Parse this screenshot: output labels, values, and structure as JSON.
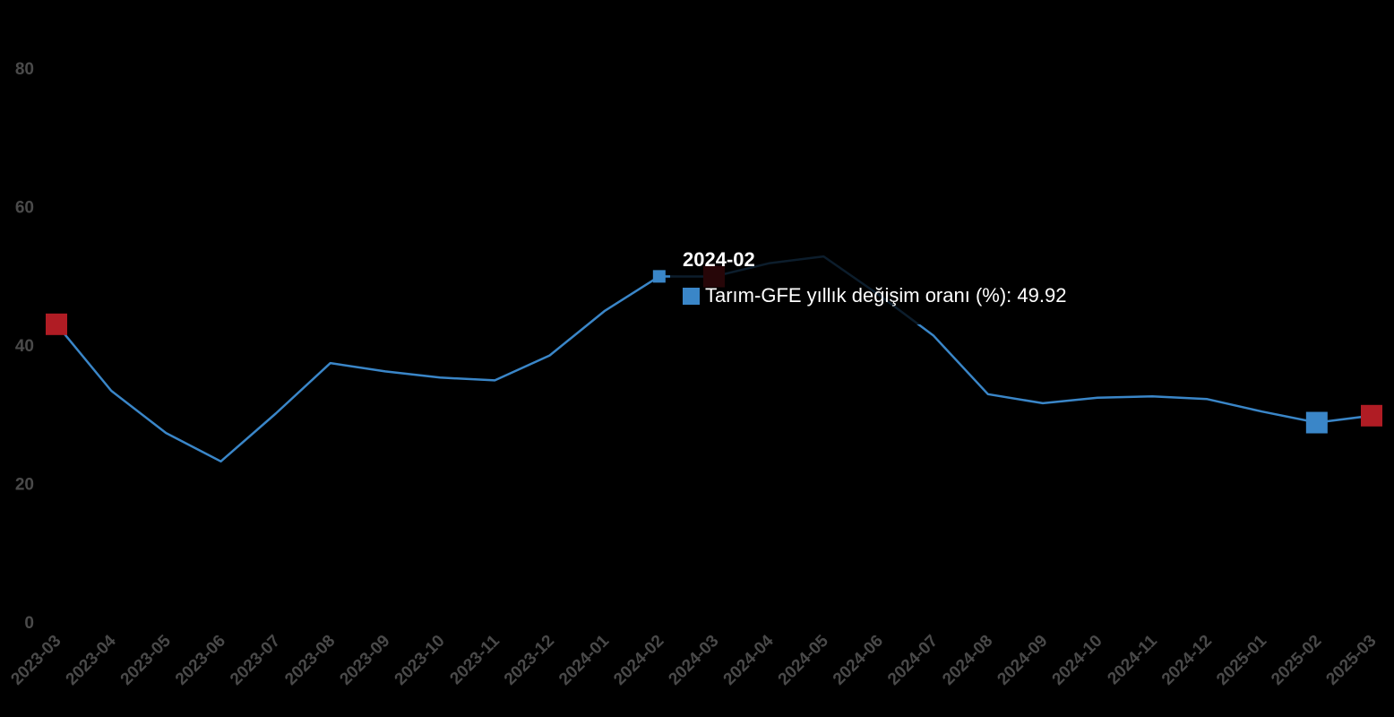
{
  "chart_data": {
    "type": "line",
    "title": "",
    "xlabel": "",
    "ylabel": "",
    "categories": [
      "2023-03",
      "2023-04",
      "2023-05",
      "2023-06",
      "2023-07",
      "2023-08",
      "2023-09",
      "2023-10",
      "2023-11",
      "2023-12",
      "2024-01",
      "2024-02",
      "2024-03",
      "2024-04",
      "2024-05",
      "2024-06",
      "2024-07",
      "2024-08",
      "2024-09",
      "2024-10",
      "2024-11",
      "2024-12",
      "2025-01",
      "2025-02",
      "2025-03"
    ],
    "ylim": [
      0,
      80
    ],
    "yticks": [
      0,
      20,
      40,
      60,
      80
    ],
    "series": [
      {
        "name": "Tarım-GFE yıllık değişim oranı (%)",
        "color": "#3a86c8",
        "values": [
          43.0,
          33.4,
          27.3,
          23.2,
          30.1,
          37.4,
          36.2,
          35.3,
          34.9,
          38.5,
          44.9,
          49.92,
          49.9,
          51.8,
          52.8,
          47.3,
          41.4,
          32.9,
          31.6,
          32.4,
          32.6,
          32.2,
          30.4,
          28.8,
          29.8
        ]
      }
    ],
    "markers": [
      {
        "category": "2023-03",
        "color": "#b01c24"
      },
      {
        "category": "2024-03",
        "color": "#b01c24"
      },
      {
        "category": "2025-02",
        "color": "#3a86c8"
      },
      {
        "category": "2025-03",
        "color": "#b01c24"
      }
    ],
    "grid": false,
    "tooltip": {
      "category": "2024-02",
      "series_label": "Tarım-GFE yıllık değişim oranı (%)",
      "value_text": "49.92",
      "swatch_color": "#3a86c8"
    }
  }
}
